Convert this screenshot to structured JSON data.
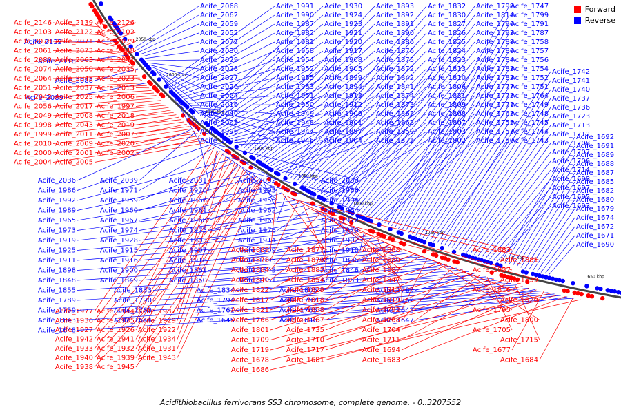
{
  "colors": {
    "forward": "#ff0000",
    "reverse": "#0000ff",
    "backbone": "#555555",
    "background": "#ffffff"
  },
  "legend": [
    {
      "label": "Forward",
      "color": "#ff0000"
    },
    {
      "label": "Reverse",
      "color": "#0000ff"
    }
  ],
  "caption": "Acidithiobacillus ferrivorans SS3 chromosome, complete genome. - 0..3207552",
  "ticks": [
    "2050 kbp",
    "2000 kbp",
    "1950 kbp",
    "1900 kbp",
    "1850 kbp",
    "1800 kbp",
    "1750 kbp",
    "1700 kbp",
    "1650 kbp"
  ],
  "reverse_outer": [
    "Acife_2068",
    "Acife_2062",
    "Acife_2059",
    "Acife_2052",
    "Acife_2072",
    "Acife_2030",
    "Acife_2029",
    "Acife_2028",
    "Acife_2027",
    "Acife_2026",
    "Acife_2024",
    "Acife_2016",
    "Acife_2040",
    "Acife_2003",
    "Acife_1996",
    "Acife_1993",
    "Acife_1991",
    "Acife_1990",
    "Acife_1987",
    "Acife_1982",
    "Acife_1981",
    "Acife_1958",
    "Acife_1954",
    "Acife_1952",
    "Acife_1955",
    "Acife_1953",
    "Acife_1951",
    "Acife_1950",
    "Acife_1949",
    "Acife_1948",
    "Acife_1947",
    "Acife_1946",
    "Acife_1930",
    "Acife_1924",
    "Acife_1923",
    "Acife_1921",
    "Acife_1920",
    "Acife_1917",
    "Acife_1908",
    "Acife_1905",
    "Acife_1899",
    "Acife_1894",
    "Acife_1913",
    "Acife_1912",
    "Acife_1906",
    "Acife_1901",
    "Acife_1897",
    "Acife_1904",
    "Acife_1893",
    "Acife_1892",
    "Acife_1891",
    "Acife_1890",
    "Acife_1886",
    "Acife_1876",
    "Acife_1875",
    "Acife_1872",
    "Acife_1842",
    "Acife_1841",
    "Acife_1874",
    "Acife_1873",
    "Acife_1863",
    "Acife_1862",
    "Acife_1859",
    "Acife_1871",
    "Acife_1832",
    "Acife_1830",
    "Acife_1827",
    "Acife_1826",
    "Acife_1825",
    "Acife_1824",
    "Acife_1823",
    "Acife_1813",
    "Acife_1810",
    "Acife_1806",
    "Acife_1831",
    "Acife_1809",
    "Acife_1808",
    "Acife_1807",
    "Acife_1803",
    "Acife_1802",
    "Acife_1798",
    "Acife_1814",
    "Acife_1796",
    "Acife_1793",
    "Acife_1788",
    "Acife_1786",
    "Acife_1784",
    "Acife_1783",
    "Acife_1782",
    "Acife_1777",
    "Acife_1773",
    "Acife_1771",
    "Acife_1763",
    "Acife_1755",
    "Acife_1753",
    "Acife_1750",
    "Acife_1747",
    "Acife_1799",
    "Acife_1791",
    "Acife_1787",
    "Acife_1758",
    "Acife_1757",
    "Acife_1756",
    "Acife_1754",
    "Acife_1752",
    "Acife_1751",
    "Acife_1764",
    "Acife_1749",
    "Acife_1748",
    "Acife_1745",
    "Acife_1744",
    "Acife_1743",
    "Acife_1742",
    "Acife_1741",
    "Acife_1740",
    "Acife_1737",
    "Acife_1736",
    "Acife_1723",
    "Acife_1713",
    "Acife_1712",
    "Acife_1708",
    "Acife_1707",
    "Acife_1706",
    "Acife_1714",
    "Acife_1698",
    "Acife_1697",
    "Acife_1695",
    "Acife_1693",
    "Acife_1692",
    "Acife_1691",
    "Acife_1689",
    "Acife_1688",
    "Acife_1687",
    "Acife_1685",
    "Acife_1682",
    "Acife_1680",
    "Acife_1679",
    "Acife_1674",
    "Acife_1672",
    "Acife_1671",
    "Acife_1690",
    "Acife_1650",
    "Acife_1649"
  ],
  "reverse_outer_left": [
    "Acife_2132",
    "Acife_2118",
    "Acife_2088",
    "Acife_2089"
  ],
  "forward_outer_left": [
    "Acife_2146",
    "Acife_2139",
    "Acife_2126",
    "Acife_2103",
    "Acife_2122",
    "Acife_2102",
    "Acife_2078",
    "Acife_2071",
    "Acife_2079",
    "Acife_2061",
    "Acife_2073",
    "Acife_2048",
    "Acife_2080",
    "Acife_2063",
    "Acife_2041",
    "Acife_2074",
    "Acife_2050",
    "Acife_2035",
    "Acife_2064",
    "Acife_2045",
    "Acife_2023",
    "Acife_2051",
    "Acife_2037",
    "Acife_2013",
    "Acife_2042",
    "Acife_2025",
    "Acife_2006",
    "Acife_2056",
    "Acife_2017",
    "Acife_1997",
    "Acife_2049",
    "Acife_2008",
    "Acife_2018",
    "Acife_1998",
    "Acife_2043",
    "Acife_2019",
    "Acife_1999",
    "Acife_2011",
    "Acife_2007",
    "Acife_2010",
    "Acife_2009",
    "Acife_2020",
    "Acife_2000",
    "Acife_2001",
    "Acife_2002",
    "Acife_2004",
    "Acife_2005",
    "Acife_1977",
    "Acife_1944",
    "Acife_1937",
    "Acife_1936",
    "Acife_1935",
    "Acife_1929",
    "Acife_1927",
    "Acife_1926",
    "Acife_1922",
    "Acife_1942",
    "Acife_1941",
    "Acife_1934",
    "Acife_1933",
    "Acife_1932",
    "Acife_1931",
    "Acife_1940",
    "Acife_1939",
    "Acife_1943",
    "Acife_1938",
    "Acife_1945"
  ],
  "reverse_inner_left": [
    "Acife_2036",
    "Acife_2039",
    "Acife_2031",
    "Acife_2032",
    "Acife_2033",
    "Acife_1986",
    "Acife_1971",
    "Acife_1970",
    "Acife_1995",
    "Acife_1988",
    "Acife_1992",
    "Acife_1959",
    "Acife_1966",
    "Acife_1956",
    "Acife_1994",
    "Acife_1989",
    "Acife_1960",
    "Acife_1961",
    "Acife_1962",
    "Acife_1964",
    "Acife_1965",
    "Acife_1967",
    "Acife_1968",
    "Acife_1969",
    "Acife_1972",
    "Acife_1973",
    "Acife_1974",
    "Acife_1975",
    "Acife_1976",
    "Acife_1979",
    "Acife_1919",
    "Acife_1928",
    "Acife_1903",
    "Acife_1914",
    "Acife_1902",
    "Acife_1925",
    "Acife_1915",
    "Acife_1907",
    "Acife_1909",
    "Acife_1910",
    "Acife_1911",
    "Acife_1916",
    "Acife_1918",
    "Acife_1895",
    "Acife_1896",
    "Acife_1898",
    "Acife_1900",
    "Acife_1861",
    "Acife_1845",
    "Acife_1846",
    "Acife_1848",
    "Acife_1849",
    "Acife_1850",
    "Acife_1851",
    "Acife_1853",
    "Acife_1855",
    "Acife_1833",
    "Acife_1834",
    "Acife_1805",
    "Acife_1785",
    "Acife_1789",
    "Acife_1790",
    "Acife_1794",
    "Acife_1797",
    "Acife_1762",
    "Acife_1759",
    "Acife_1760",
    "Acife_1761",
    "Acife_1765",
    "Acife_1642",
    "Acife_1643",
    "Acife_1644",
    "Acife_1645",
    "Acife_1646",
    "Acife_1647",
    "Acife_1648"
  ],
  "forward_inner": [
    "Acife_1889",
    "Acife_1877",
    "Acife_1888",
    "Acife_1883",
    "Acife_1878",
    "Acife_1879",
    "Acife_1880",
    "Acife_1881",
    "Acife_1884",
    "Acife_1885",
    "Acife_1887",
    "Acife_1857",
    "Acife_1840",
    "Acife_1854",
    "Acife_1847",
    "Acife_1839",
    "Acife_1822",
    "Acife_1829",
    "Acife_1815",
    "Acife_1816",
    "Acife_1817",
    "Acife_1818",
    "Acife_1819",
    "Acife_1820",
    "Acife_1821",
    "Acife_1858",
    "Acife_1792",
    "Acife_1795",
    "Acife_1766",
    "Acife_1767",
    "Acife_1768",
    "Acife_1800",
    "Acife_1801",
    "Acife_1735",
    "Acife_1704",
    "Acife_1705",
    "Acife_1709",
    "Acife_1710",
    "Acife_1711",
    "Acife_1715",
    "Acife_1719",
    "Acife_1717",
    "Acife_1694",
    "Acife_1677",
    "Acife_1678",
    "Acife_1681",
    "Acife_1683",
    "Acife_1684",
    "Acife_1686"
  ]
}
